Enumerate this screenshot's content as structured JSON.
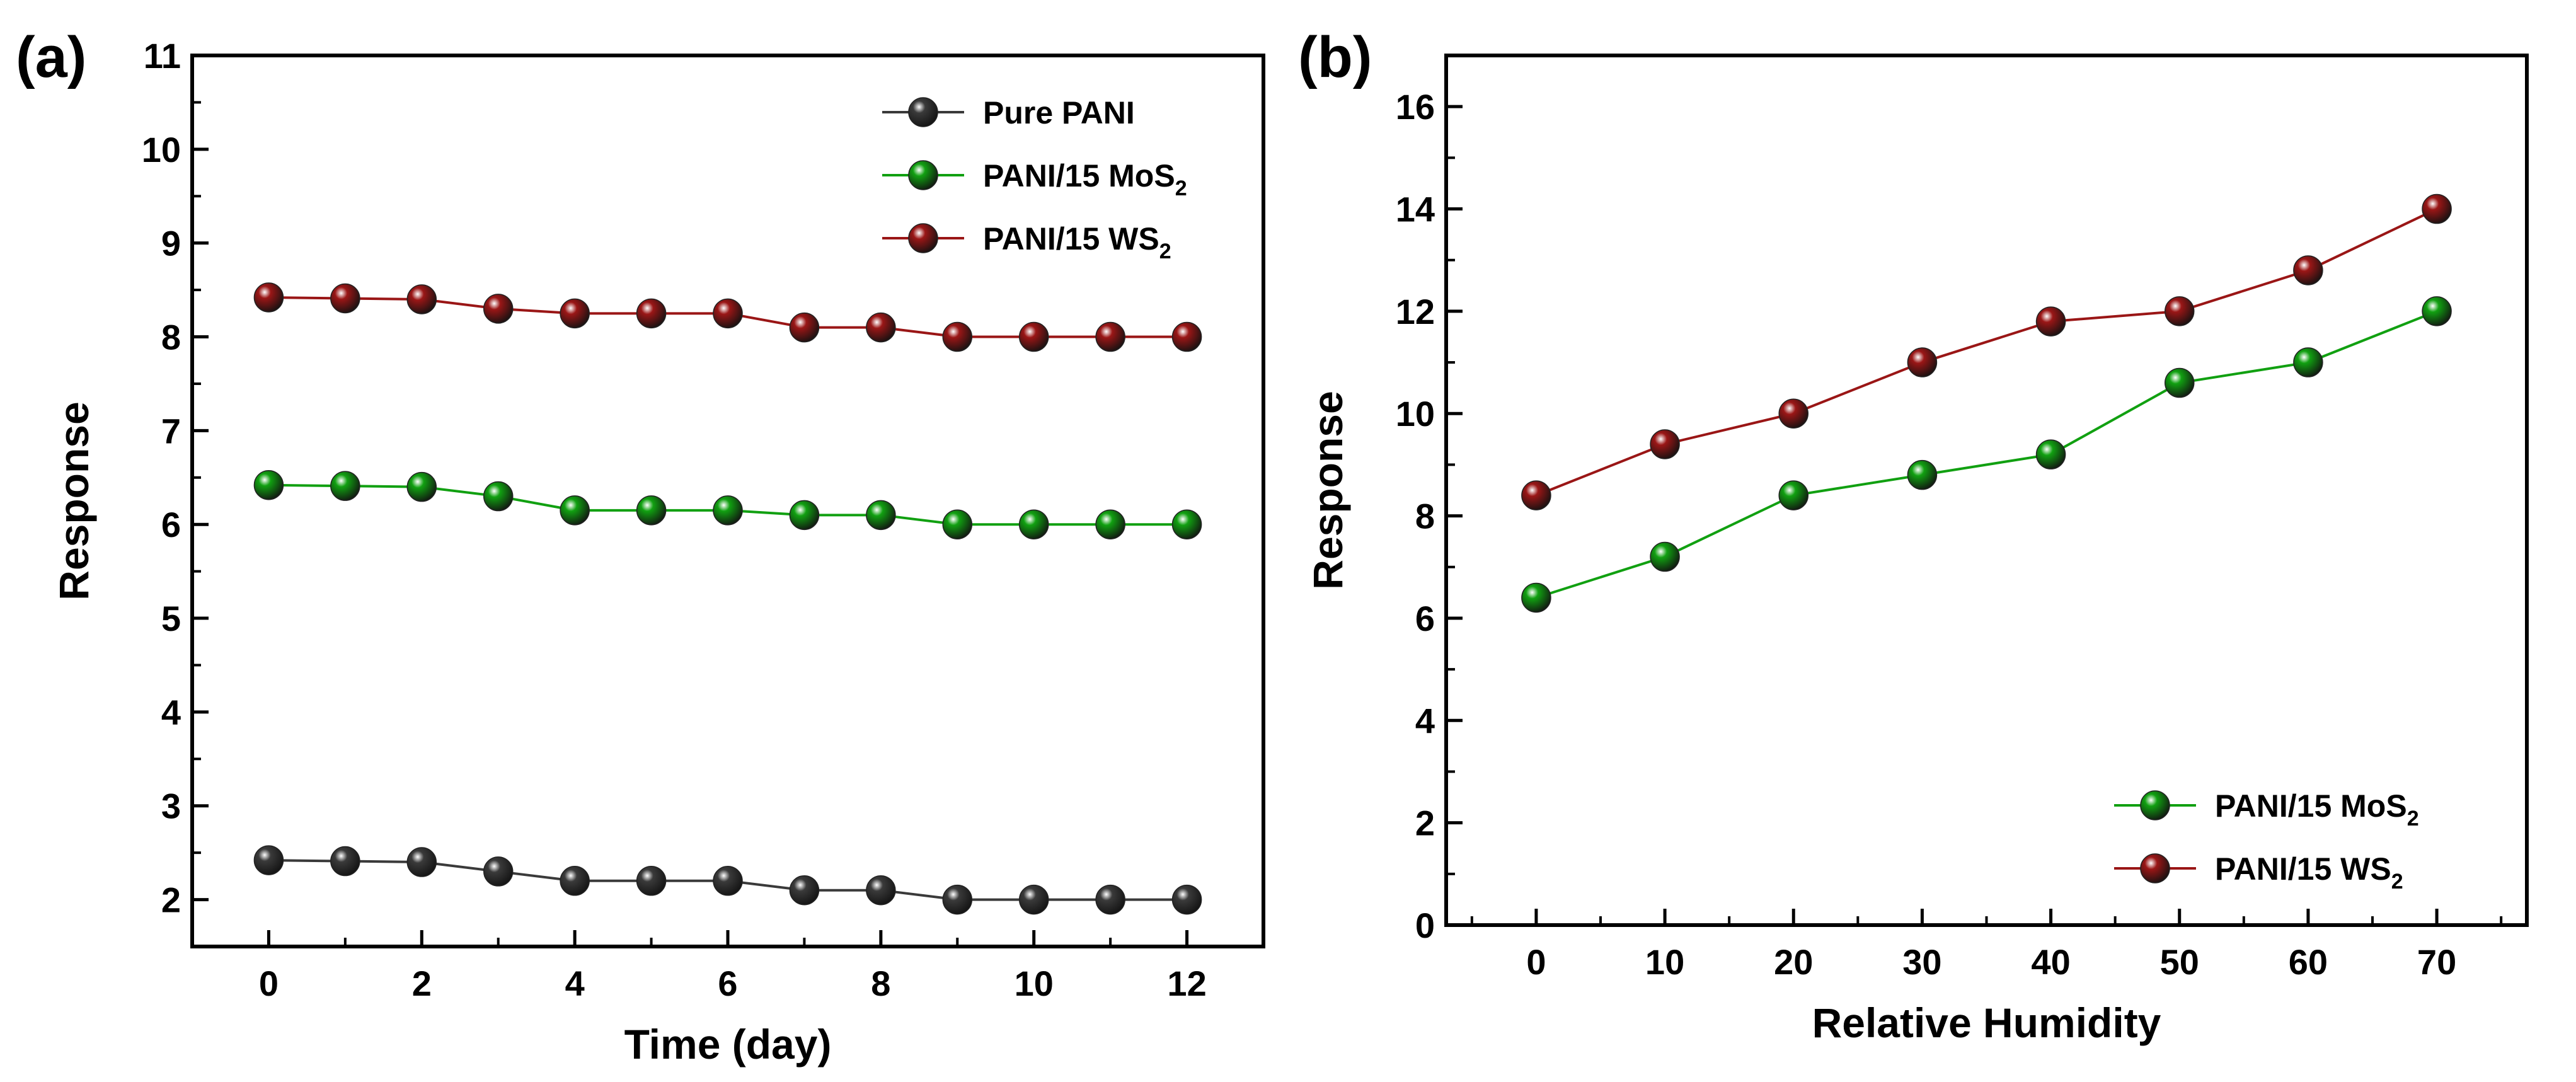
{
  "chart_data": [
    {
      "panel_label": "(a)",
      "type": "line",
      "xlabel": "Time (day)",
      "ylabel": "Response",
      "xlim": [
        -1,
        13
      ],
      "ylim": [
        1.5,
        11
      ],
      "xticks": [
        0,
        2,
        4,
        6,
        8,
        10,
        12
      ],
      "yticks": [
        2,
        3,
        4,
        5,
        6,
        7,
        8,
        9,
        10,
        11
      ],
      "x": [
        0,
        1,
        2,
        3,
        4,
        5,
        6,
        7,
        8,
        9,
        10,
        11,
        12
      ],
      "legend_position": "top-right",
      "series": [
        {
          "name": "Pure PANI",
          "name_main": "Pure PANI",
          "name_sub": "",
          "color": "#3a3a3a",
          "values": [
            2.42,
            2.41,
            2.4,
            2.3,
            2.2,
            2.2,
            2.2,
            2.1,
            2.1,
            2.0,
            2.0,
            2.0,
            2.0
          ]
        },
        {
          "name": "PANI/15 MoS2",
          "name_main": "PANI/15 MoS",
          "name_sub": "2",
          "color": "#11a011",
          "values": [
            6.42,
            6.41,
            6.4,
            6.3,
            6.15,
            6.15,
            6.15,
            6.1,
            6.1,
            6.0,
            6.0,
            6.0,
            6.0
          ]
        },
        {
          "name": "PANI/15 WS2",
          "name_main": "PANI/15 WS",
          "name_sub": "2",
          "color": "#9a1616",
          "values": [
            8.42,
            8.41,
            8.4,
            8.3,
            8.25,
            8.25,
            8.25,
            8.1,
            8.1,
            8.0,
            8.0,
            8.0,
            8.0
          ]
        }
      ]
    },
    {
      "panel_label": "(b)",
      "type": "line",
      "xlabel": "Relative Humidity",
      "ylabel": "Response",
      "xlim": [
        -7,
        77
      ],
      "ylim": [
        0,
        17
      ],
      "xticks": [
        0,
        10,
        20,
        30,
        40,
        50,
        60,
        70
      ],
      "yticks": [
        0,
        2,
        4,
        6,
        8,
        10,
        12,
        14,
        16
      ],
      "x": [
        0,
        10,
        20,
        30,
        40,
        50,
        60,
        70
      ],
      "legend_position": "bottom-right",
      "series": [
        {
          "name": "PANI/15 MoS2",
          "name_main": "PANI/15 MoS",
          "name_sub": "2",
          "color": "#11a011",
          "values": [
            6.4,
            7.2,
            8.4,
            8.8,
            9.2,
            10.6,
            11.0,
            12.0
          ]
        },
        {
          "name": "PANI/15 WS2",
          "name_main": "PANI/15 WS",
          "name_sub": "2",
          "color": "#9a1616",
          "values": [
            8.4,
            9.4,
            10.0,
            11.0,
            11.8,
            12.0,
            12.8,
            14.0
          ]
        }
      ]
    }
  ]
}
